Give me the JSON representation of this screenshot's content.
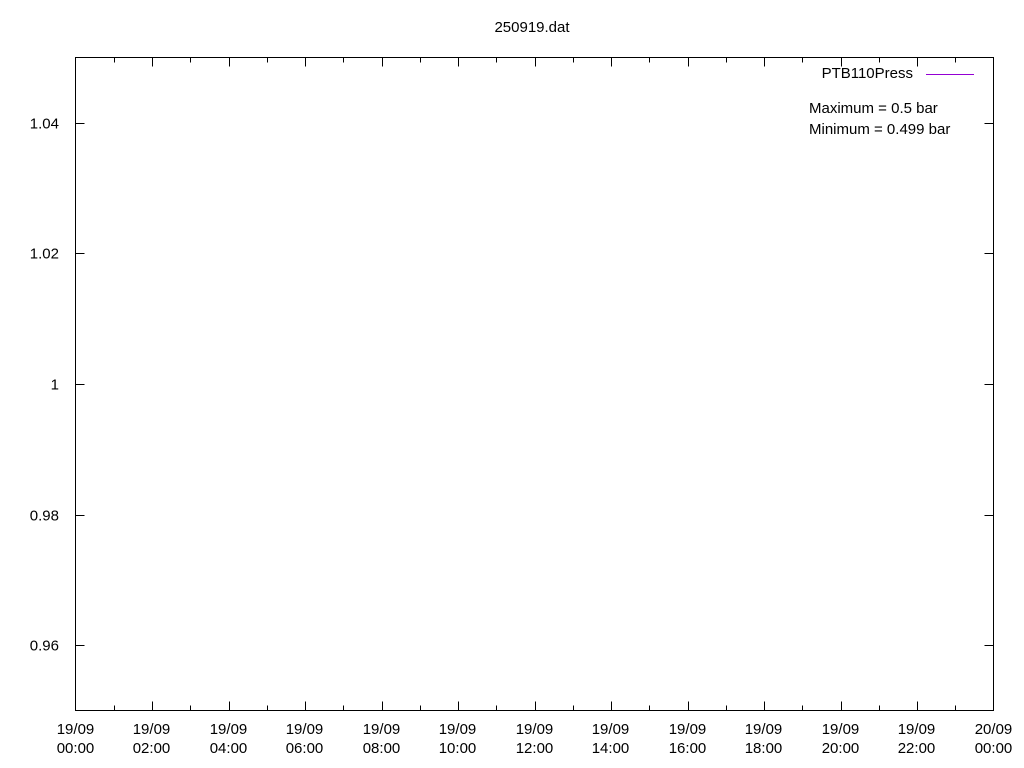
{
  "chart_data": {
    "type": "line",
    "title": "250919.dat",
    "xlabel": "",
    "ylabel": "",
    "ylim": [
      0.95,
      1.05
    ],
    "y_ticks": [
      "1.04",
      "1.02",
      "1",
      "0.98",
      "0.96"
    ],
    "y_tick_values": [
      1.04,
      1.02,
      1.0,
      0.98,
      0.96
    ],
    "x_range_hours": [
      0,
      48
    ],
    "x_tick_labels": [
      [
        "19/09",
        "00:00"
      ],
      [
        "19/09",
        "02:00"
      ],
      [
        "19/09",
        "04:00"
      ],
      [
        "19/09",
        "06:00"
      ],
      [
        "19/09",
        "08:00"
      ],
      [
        "19/09",
        "10:00"
      ],
      [
        "19/09",
        "12:00"
      ],
      [
        "19/09",
        "14:00"
      ],
      [
        "19/09",
        "16:00"
      ],
      [
        "19/09",
        "18:00"
      ],
      [
        "19/09",
        "20:00"
      ],
      [
        "19/09",
        "22:00"
      ],
      [
        "20/09",
        "00:00"
      ]
    ],
    "grid": false,
    "legend_placement": "top-right",
    "series": [
      {
        "name": "PTB110Press",
        "color": "#9400d3",
        "values": []
      }
    ],
    "annotations": [
      "Maximum = 0.5 bar",
      "Minimum = 0.499 bar"
    ]
  }
}
